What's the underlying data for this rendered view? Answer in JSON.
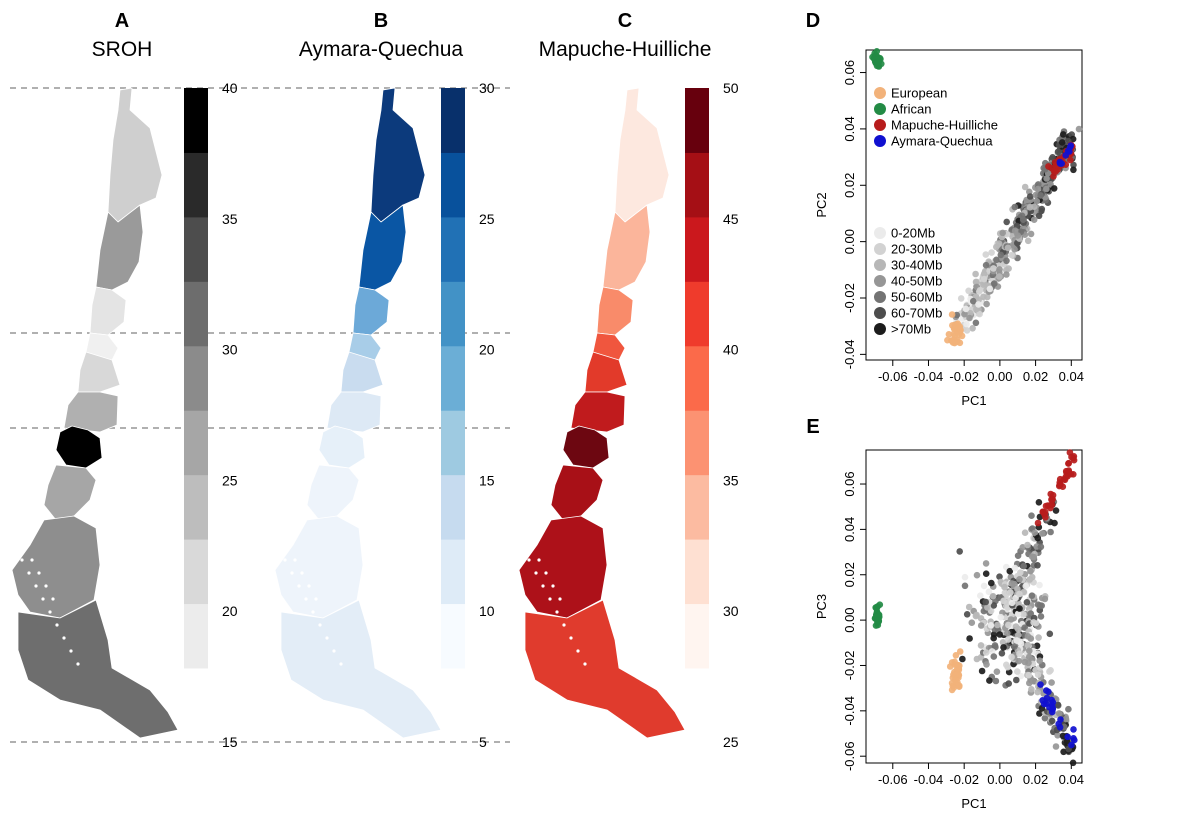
{
  "colors": {
    "European": "#f2b27a",
    "African": "#238b45",
    "Mapuche-Huilliche": "#b71c1c",
    "Aymara-Quechua": "#1010d0",
    "guide_line": "#b0b0b0"
  },
  "maps": [
    {
      "label": "A",
      "title": "SROH",
      "scale": "gray",
      "colorbar": {
        "min": 15,
        "max": 40,
        "ticks": [
          15,
          20,
          25,
          30,
          35,
          40
        ],
        "bins": [
          "#ececec",
          "#d9d9d9",
          "#bdbdbd",
          "#a6a6a6",
          "#8b8b8b",
          "#6d6d6d",
          "#4d4d4d",
          "#2a2a2a",
          "#000000"
        ]
      },
      "regions": [
        "#cfcfcf",
        "#9a9a9a",
        "#e4e4e4",
        "#f0f0f0",
        "#d8d8d8",
        "#b0b0b0",
        "#000000",
        "#a6a6a6",
        "#8e8e8e",
        "#6e6e6e"
      ]
    },
    {
      "label": "B",
      "title": "Aymara-Quechua",
      "scale": "blue",
      "colorbar": {
        "min": 5,
        "max": 30,
        "ticks": [
          5,
          10,
          15,
          20,
          25,
          30
        ],
        "bins": [
          "#f7fbff",
          "#deebf7",
          "#c6dbef",
          "#9ecae1",
          "#6baed6",
          "#4292c6",
          "#2171b5",
          "#08519c",
          "#08306b"
        ]
      },
      "regions": [
        "#0c3a7c",
        "#0a56a4",
        "#6ca9d8",
        "#a8cde8",
        "#c9dcef",
        "#dde9f5",
        "#e6f0f9",
        "#eef4fb",
        "#eef4fb",
        "#e3edf7"
      ]
    },
    {
      "label": "C",
      "title": "Mapuche-Huilliche",
      "scale": "red",
      "colorbar": {
        "min": 25,
        "max": 50,
        "ticks": [
          25,
          30,
          35,
          40,
          45,
          50
        ],
        "bins": [
          "#fff5f0",
          "#fee0d2",
          "#fcbba1",
          "#fc9272",
          "#fb6a4a",
          "#ef3b2c",
          "#cb181d",
          "#a50f15",
          "#67000d"
        ]
      },
      "regions": [
        "#fde8df",
        "#fbb59b",
        "#f98b6a",
        "#f0563e",
        "#e23a2a",
        "#c01b1d",
        "#6d0711",
        "#a81017",
        "#ad1119",
        "#e03b2d"
      ]
    }
  ],
  "chart_data": [
    {
      "type": "scatter",
      "label": "D",
      "xlabel": "PC1",
      "ylabel": "PC2",
      "xlim": [
        -0.075,
        0.046
      ],
      "ylim": [
        -0.042,
        0.068
      ],
      "xticks": [
        "-0.06",
        "-0.04",
        "-0.02",
        "0.00",
        "0.02",
        "0.04"
      ],
      "xtick_values": [
        -0.06,
        -0.04,
        -0.02,
        0.0,
        0.02,
        0.04
      ],
      "yticks": [
        "-0.04",
        "-0.02",
        "0.00",
        "0.02",
        "0.04",
        "0.06"
      ],
      "ytick_values": [
        -0.04,
        -0.02,
        0.0,
        0.02,
        0.04,
        0.06
      ],
      "legend_groups": [
        "European",
        "African",
        "Mapuche-Huilliche",
        "Aymara-Quechua"
      ],
      "legend_roh": [
        "0-20Mb",
        "20-30Mb",
        "30-40Mb",
        "40-50Mb",
        "50-60Mb",
        "60-70Mb",
        ">70Mb"
      ],
      "legend_roh_colors": [
        "#ebebeb",
        "#d2d2d2",
        "#b7b7b7",
        "#969696",
        "#737373",
        "#4d4d4d",
        "#1c1c1c"
      ],
      "clusters": {
        "African": {
          "center": [
            -0.0685,
            0.0645
          ],
          "spread": [
            0.0012,
            0.0012
          ],
          "n": 30
        },
        "European": {
          "center": [
            -0.0245,
            -0.0315
          ],
          "spread": [
            0.0018,
            0.0022
          ],
          "n": 35
        },
        "Mapuche-Huilliche": {
          "start": [
            0.028,
            0.024
          ],
          "end": [
            0.042,
            0.034
          ],
          "n": 30
        },
        "Aymara-Quechua": {
          "start": [
            0.034,
            0.028
          ],
          "end": [
            0.04,
            0.034
          ],
          "n": 8
        },
        "Admixed": {
          "start": [
            -0.02,
            -0.028
          ],
          "end": [
            0.04,
            0.036
          ],
          "n": 420
        }
      }
    },
    {
      "type": "scatter",
      "label": "E",
      "xlabel": "PC1",
      "ylabel": "PC3",
      "xlim": [
        -0.075,
        0.046
      ],
      "ylim": [
        -0.063,
        0.075
      ],
      "xticks": [
        "-0.06",
        "-0.04",
        "-0.02",
        "0.00",
        "0.02",
        "0.04"
      ],
      "xtick_values": [
        -0.06,
        -0.04,
        -0.02,
        0.0,
        0.02,
        0.04
      ],
      "yticks": [
        "-0.06",
        "-0.04",
        "-0.02",
        "0.00",
        "0.02",
        "0.04",
        "0.06"
      ],
      "ytick_values": [
        -0.06,
        -0.04,
        -0.02,
        0.0,
        0.02,
        0.04,
        0.06
      ],
      "clusters": {
        "African": {
          "center": [
            -0.0685,
            0.002
          ],
          "spread": [
            0.0009,
            0.0025
          ],
          "n": 30
        },
        "European": {
          "center": [
            -0.0245,
            -0.024
          ],
          "spread": [
            0.0012,
            0.004
          ],
          "n": 35
        },
        "Mapuche-Huilliche": {
          "start": [
            0.024,
            0.045
          ],
          "end": [
            0.042,
            0.072
          ],
          "n": 40
        },
        "Aymara-Quechua": {
          "start": [
            0.024,
            -0.03
          ],
          "end": [
            0.04,
            -0.052
          ],
          "n": 22
        },
        "Admixed_core": {
          "center": [
            0.005,
            0.0
          ],
          "spread": [
            0.011,
            0.012
          ],
          "n": 260
        },
        "Admixed_upper": {
          "start": [
            0.01,
            0.01
          ],
          "end": [
            0.028,
            0.05
          ],
          "n": 70
        },
        "Admixed_lower": {
          "start": [
            0.01,
            -0.01
          ],
          "end": [
            0.041,
            -0.058
          ],
          "n": 130
        }
      }
    }
  ]
}
